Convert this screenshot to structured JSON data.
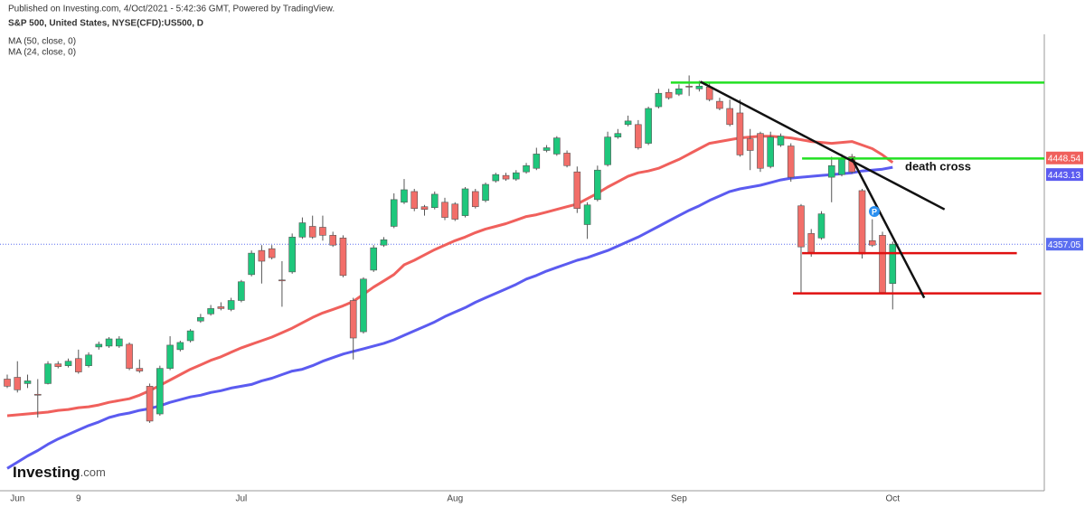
{
  "chart_data": {
    "type": "candlestick",
    "subtitle": "Published on Investing.com, 4/Oct/2021 - 5:42:36 GMT, Powered by TradingView.",
    "title": "S&P 500, United States, NYSE(CFD):US500, D",
    "categories": [
      null,
      "Jun",
      null,
      null,
      null,
      null,
      null,
      "9",
      null,
      null,
      null,
      null,
      null,
      null,
      null,
      null,
      null,
      null,
      null,
      null,
      null,
      null,
      null,
      "Jul",
      null,
      null,
      null,
      null,
      null,
      null,
      null,
      null,
      null,
      null,
      null,
      null,
      null,
      null,
      null,
      null,
      null,
      null,
      null,
      null,
      "Aug",
      null,
      null,
      null,
      null,
      null,
      null,
      null,
      null,
      null,
      null,
      null,
      null,
      null,
      null,
      null,
      null,
      null,
      null,
      null,
      null,
      null,
      "Sep",
      null,
      null,
      null,
      null,
      null,
      null,
      null,
      null,
      null,
      null,
      null,
      null,
      null,
      null,
      null,
      null,
      null,
      null,
      null,
      null,
      "Oct"
    ],
    "open": [
      4206,
      4208,
      4201,
      4189,
      4201,
      4223,
      4221,
      4229,
      4221,
      4242,
      4243,
      4243,
      4245,
      4218,
      4198,
      4167,
      4218,
      4239,
      4249,
      4271,
      4279,
      4287,
      4284,
      4294,
      4323,
      4350,
      4352,
      4317,
      4326,
      4365,
      4377,
      4376,
      4367,
      4364,
      4294,
      4259,
      4328,
      4356,
      4377,
      4404,
      4416,
      4399,
      4398,
      4404,
      4402,
      4389,
      4416,
      4406,
      4428,
      4434,
      4430,
      4438,
      4442,
      4462,
      4458,
      4459,
      4438,
      4379,
      4407,
      4446,
      4477,
      4491,
      4491,
      4470,
      4511,
      4527,
      4525,
      4534,
      4531,
      4533,
      4517,
      4509,
      4504,
      4475,
      4481,
      4444,
      4468,
      4467,
      4400,
      4369,
      4364,
      4432,
      4435,
      4455,
      4417,
      4361,
      4367,
      4313
    ],
    "high": [
      4211,
      4226,
      4211,
      4206,
      4226,
      4226,
      4229,
      4239,
      4236,
      4248,
      4253,
      4254,
      4247,
      4228,
      4201,
      4221,
      4254,
      4249,
      4262,
      4279,
      4289,
      4292,
      4297,
      4317,
      4350,
      4356,
      4356,
      4338,
      4369,
      4387,
      4389,
      4389,
      4371,
      4367,
      4297,
      4320,
      4356,
      4365,
      4414,
      4430,
      4419,
      4401,
      4416,
      4409,
      4404,
      4421,
      4419,
      4426,
      4437,
      4437,
      4440,
      4448,
      4465,
      4468,
      4478,
      4462,
      4444,
      4404,
      4445,
      4483,
      4486,
      4501,
      4496,
      4511,
      4531,
      4531,
      4536,
      4546,
      4540,
      4538,
      4521,
      4519,
      4519,
      4486,
      4483,
      4483,
      4481,
      4470,
      4402,
      4374,
      4394,
      4455,
      4458,
      4458,
      4419,
      4385,
      4371,
      4360
    ],
    "low": [
      4196,
      4191,
      4196,
      4163,
      4200,
      4218,
      4219,
      4212,
      4219,
      4239,
      4241,
      4241,
      4216,
      4213,
      4157,
      4165,
      4216,
      4237,
      4247,
      4269,
      4277,
      4283,
      4282,
      4292,
      4321,
      4313,
      4340,
      4287,
      4324,
      4363,
      4363,
      4361,
      4354,
      4320,
      4228,
      4257,
      4326,
      4354,
      4375,
      4402,
      4394,
      4389,
      4396,
      4384,
      4383,
      4387,
      4397,
      4404,
      4426,
      4428,
      4428,
      4436,
      4440,
      4460,
      4456,
      4443,
      4392,
      4363,
      4405,
      4444,
      4475,
      4489,
      4463,
      4468,
      4509,
      4519,
      4523,
      4523,
      4528,
      4517,
      4507,
      4489,
      4455,
      4440,
      4438,
      4442,
      4466,
      4427,
      4303,
      4343,
      4362,
      4404,
      4433,
      4436,
      4341,
      4354,
      4301,
      4284
    ],
    "close": [
      4198,
      4194,
      4204,
      4188,
      4223,
      4220,
      4226,
      4214,
      4233,
      4245,
      4251,
      4251,
      4218,
      4215,
      4159,
      4218,
      4244,
      4247,
      4260,
      4275,
      4285,
      4285,
      4294,
      4315,
      4347,
      4338,
      4342,
      4316,
      4365,
      4381,
      4365,
      4367,
      4356,
      4322,
      4252,
      4318,
      4353,
      4362,
      4407,
      4418,
      4397,
      4396,
      4413,
      4387,
      4385,
      4419,
      4399,
      4424,
      4435,
      4430,
      4437,
      4445,
      4458,
      4465,
      4476,
      4445,
      4397,
      4401,
      4440,
      4477,
      4481,
      4495,
      4465,
      4509,
      4526,
      4521,
      4531,
      4533,
      4534,
      4519,
      4509,
      4491,
      4457,
      4462,
      4442,
      4477,
      4478,
      4432,
      4354,
      4348,
      4391,
      4445,
      4453,
      4438,
      4346,
      4356,
      4303,
      4357.05
    ],
    "up_color": "#1ec77c",
    "down_color": "#f26e69",
    "border_color": "#555555",
    "last_price": 4357.05,
    "last_price_color": "#5b6ef0",
    "series": [
      {
        "name": "MA (50, close, 0)",
        "color": "#5b5bf0",
        "last_value": 4443.13,
        "values": [
          4106,
          4113,
          4120,
          4126,
          4133,
          4139,
          4144,
          4149,
          4154,
          4158,
          4163,
          4166,
          4168,
          4171,
          4173,
          4176,
          4180,
          4183,
          4186,
          4188,
          4191,
          4193,
          4196,
          4198,
          4200,
          4204,
          4207,
          4211,
          4215,
          4217,
          4221,
          4226,
          4230,
          4234,
          4237,
          4240,
          4243,
          4246,
          4250,
          4255,
          4260,
          4265,
          4270,
          4276,
          4281,
          4286,
          4292,
          4297,
          4302,
          4307,
          4312,
          4318,
          4322,
          4327,
          4331,
          4335,
          4339,
          4342,
          4346,
          4350,
          4355,
          4360,
          4365,
          4371,
          4377,
          4383,
          4389,
          4395,
          4400,
          4406,
          4411,
          4416,
          4419,
          4421,
          4423,
          4426,
          4429,
          4431,
          4432,
          4433,
          4434,
          4435,
          4436,
          4437,
          4439,
          4440,
          4441,
          4443.13
        ]
      },
      {
        "name": "MA (24, close, 0)",
        "color": "#f0605c",
        "last_value": 4448.54,
        "values": [
          4165,
          4166,
          4167,
          4168,
          4169,
          4171,
          4172,
          4174,
          4175,
          4177,
          4180,
          4182,
          4184,
          4188,
          4193,
          4199,
          4205,
          4211,
          4217,
          4222,
          4227,
          4231,
          4236,
          4241,
          4245,
          4249,
          4253,
          4258,
          4263,
          4269,
          4275,
          4280,
          4284,
          4288,
          4293,
          4301,
          4309,
          4316,
          4323,
          4334,
          4339,
          4345,
          4351,
          4356,
          4361,
          4365,
          4370,
          4374,
          4377,
          4380,
          4384,
          4388,
          4390,
          4393,
          4396,
          4399,
          4402,
          4408,
          4414,
          4421,
          4427,
          4433,
          4437,
          4439,
          4442,
          4447,
          4452,
          4458,
          4464,
          4470,
          4472,
          4474,
          4476,
          4477,
          4478,
          4478,
          4477,
          4476,
          4474,
          4472,
          4471,
          4470,
          4471,
          4472,
          4468,
          4464,
          4457,
          4448.54
        ]
      }
    ],
    "ylim": [
      4081,
      4592
    ],
    "drawings": [
      {
        "color": "#22e022",
        "x": [
          65.2,
          101.9
        ],
        "y": [
          4538,
          4538
        ]
      },
      {
        "color": "#22e022",
        "x": [
          78.1,
          101.9
        ],
        "y": [
          4453,
          4453
        ]
      },
      {
        "color": "#e01010",
        "x": [
          78.1,
          99.2
        ],
        "y": [
          4347,
          4347
        ]
      },
      {
        "color": "#e01010",
        "x": [
          77.2,
          101.6
        ],
        "y": [
          4302,
          4302
        ]
      },
      {
        "color": "#111111",
        "x": [
          68.1,
          92.1
        ],
        "y": [
          4539,
          4396
        ]
      },
      {
        "color": "#111111",
        "x": [
          83.0,
          90.1
        ],
        "y": [
          4453,
          4297
        ]
      }
    ],
    "annotations": [
      {
        "text": "death cross"
      },
      {
        "text": "P"
      }
    ],
    "logo": {
      "main": "Investing",
      "suffix": ".com"
    }
  }
}
